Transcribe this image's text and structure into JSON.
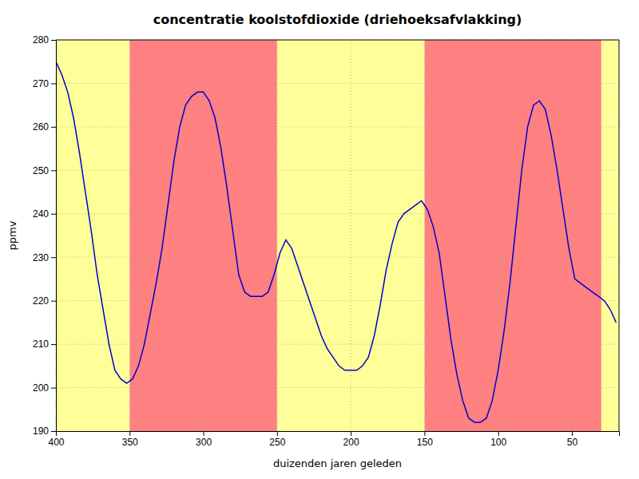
{
  "chart_data": {
    "type": "line",
    "title": "concentratie koolstofdioxide (driehoeksafvlakking)",
    "x_label": "duizenden jaren geleden",
    "y_label": "ppmv",
    "xlim": [
      400,
      18
    ],
    "ylim": [
      190,
      280
    ],
    "xticks": [
      400,
      350,
      300,
      250,
      200,
      150,
      100,
      50
    ],
    "yticks": [
      190,
      200,
      210,
      220,
      230,
      240,
      250,
      260,
      270,
      280
    ],
    "grid": true,
    "color": "#0000cc",
    "bands": [
      {
        "from": 350,
        "to": 250,
        "color": "#ff8080"
      },
      {
        "from": 150,
        "to": 30,
        "color": "#ff8080"
      },
      {
        "from": 400,
        "to": 350,
        "color": "#ffff99"
      },
      {
        "from": 250,
        "to": 150,
        "color": "#ffff99"
      },
      {
        "from": 30,
        "to": 18,
        "color": "#ffff99"
      }
    ],
    "x": [
      400,
      396,
      392,
      388,
      384,
      380,
      376,
      372,
      368,
      364,
      360,
      356,
      352,
      348,
      344,
      340,
      336,
      332,
      328,
      324,
      320,
      316,
      312,
      308,
      304,
      300,
      296,
      292,
      288,
      284,
      280,
      276,
      272,
      268,
      264,
      260,
      256,
      252,
      248,
      244,
      240,
      236,
      232,
      228,
      224,
      220,
      216,
      212,
      208,
      204,
      200,
      196,
      192,
      188,
      184,
      180,
      176,
      172,
      168,
      164,
      160,
      156,
      152,
      148,
      144,
      140,
      136,
      132,
      128,
      124,
      120,
      116,
      112,
      108,
      104,
      100,
      96,
      92,
      88,
      84,
      80,
      76,
      72,
      68,
      64,
      60,
      56,
      52,
      48,
      44,
      40,
      36,
      32,
      28,
      24,
      20
    ],
    "values": [
      275,
      272,
      268,
      262,
      254,
      245,
      236,
      226,
      218,
      210,
      204,
      202,
      201,
      202,
      205,
      210,
      217,
      224,
      232,
      242,
      252,
      260,
      265,
      267,
      268,
      268,
      266,
      262,
      255,
      246,
      236,
      226,
      222,
      221,
      221,
      221,
      222,
      226,
      231,
      234,
      232,
      228,
      224,
      220,
      216,
      212,
      209,
      207,
      205,
      204,
      204,
      204,
      205,
      207,
      212,
      219,
      227,
      233,
      238,
      240,
      241,
      242,
      243,
      241,
      237,
      231,
      221,
      211,
      203,
      197,
      193,
      192,
      192,
      193,
      197,
      204,
      213,
      224,
      237,
      250,
      260,
      265,
      266,
      264,
      258,
      250,
      241,
      232,
      225,
      224,
      223,
      222,
      221,
      220,
      218,
      215
    ]
  }
}
